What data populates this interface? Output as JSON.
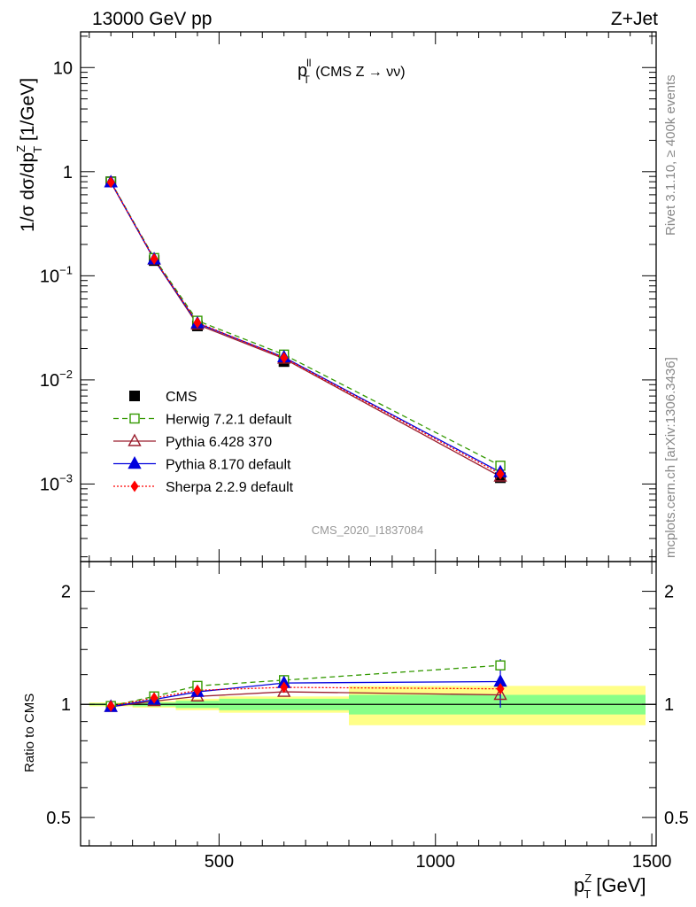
{
  "header": {
    "energy_label": "13000 GeV pp",
    "process_label": "Z+Jet"
  },
  "side_text": {
    "rivet": "Rivet 3.1.10, ≥ 400k events",
    "mcplots": "mcplots.cern.ch [arXiv:1306.3436]"
  },
  "analysis_id": "CMS_2020_I1837084",
  "chart_data": [
    {
      "type": "line",
      "panel": "main",
      "title_main": "p",
      "title_sup": "ll",
      "title_sub": "T",
      "title_rest": " (CMS Z → νν)",
      "ylabel_parts": [
        "1/σ dσ/dp",
        "Z",
        "T",
        " [1/GeV]"
      ],
      "yscale": "log",
      "ylim": [
        0.00018,
        22
      ],
      "xlim": [
        180,
        1510
      ],
      "y_ticks": [
        {
          "value": 10,
          "base": "10",
          "exp": ""
        },
        {
          "value": 1,
          "base": "1",
          "exp": ""
        },
        {
          "value": 0.1,
          "base": "10",
          "exp": "−1"
        },
        {
          "value": 0.01,
          "base": "10",
          "exp": "−2"
        },
        {
          "value": 0.001,
          "base": "10",
          "exp": "−3"
        }
      ],
      "x": [
        250,
        350,
        450,
        650,
        1150
      ],
      "data": {
        "name": "CMS",
        "values": [
          0.8,
          0.14,
          0.033,
          0.015,
          0.00115
        ],
        "color": "#000000",
        "marker": "square"
      },
      "series": [
        {
          "name": "Herwig 7.2.1 default",
          "values": [
            0.8,
            0.148,
            0.037,
            0.0175,
            0.0015
          ],
          "color": "#339900",
          "marker": "open-square",
          "dash": "6,4"
        },
        {
          "name": "Pythia 6.428 370",
          "values": [
            0.79,
            0.143,
            0.034,
            0.016,
            0.00118
          ],
          "color": "#9b1f2f",
          "marker": "open-triangle",
          "dash": ""
        },
        {
          "name": "Pythia 8.170 default",
          "values": [
            0.79,
            0.144,
            0.035,
            0.0165,
            0.0013
          ],
          "color": "#0000dd",
          "marker": "triangle",
          "dash": ""
        },
        {
          "name": "Sherpa 2.2.9 default",
          "values": [
            0.79,
            0.145,
            0.0355,
            0.0163,
            0.00125
          ],
          "color": "#ff0000",
          "marker": "diamond",
          "dash": "2,2"
        }
      ]
    },
    {
      "type": "line",
      "panel": "ratio",
      "ylabel": "Ratio to CMS",
      "yscale": "log",
      "ylim": [
        0.42,
        2.4
      ],
      "y_ticks": [
        {
          "value": 2,
          "label": "2"
        },
        {
          "value": 1,
          "label": "1"
        },
        {
          "value": 0.5,
          "label": "0.5"
        }
      ],
      "x_ticks": [
        {
          "value": 500,
          "label": "500"
        },
        {
          "value": 1000,
          "label": "1000"
        },
        {
          "value": 1500,
          "label": "1500"
        }
      ],
      "xlabel_parts": [
        "p",
        "Z",
        "T",
        " [GeV]"
      ],
      "x": [
        250,
        350,
        450,
        650,
        1150
      ],
      "bands": [
        {
          "x0": 200,
          "x1": 300,
          "stat": 0.006,
          "total": 0.012
        },
        {
          "x0": 300,
          "x1": 400,
          "stat": 0.012,
          "total": 0.02
        },
        {
          "x0": 400,
          "x1": 500,
          "stat": 0.022,
          "total": 0.035
        },
        {
          "x0": 500,
          "x1": 800,
          "stat": 0.035,
          "total": 0.05
        },
        {
          "x0": 800,
          "x1": 1500,
          "stat": 0.06,
          "total": 0.12
        }
      ],
      "series": [
        {
          "name": "Herwig 7.2.1 default",
          "values": [
            0.99,
            1.05,
            1.12,
            1.16,
            1.27
          ],
          "err": [
            0,
            0,
            0,
            0,
            0.03
          ]
        },
        {
          "name": "Pythia 6.428 370",
          "values": [
            0.985,
            1.02,
            1.05,
            1.08,
            1.06
          ],
          "err": [
            0,
            0,
            0,
            0,
            0.02
          ]
        },
        {
          "name": "Pythia 8.170 default",
          "values": [
            0.985,
            1.03,
            1.08,
            1.14,
            1.15
          ],
          "err": [
            0,
            0,
            0,
            0,
            0.17
          ]
        },
        {
          "name": "Sherpa 2.2.9 default",
          "values": [
            0.99,
            1.04,
            1.09,
            1.11,
            1.1
          ],
          "err": [
            0,
            0,
            0,
            0,
            0.03
          ]
        }
      ]
    }
  ]
}
